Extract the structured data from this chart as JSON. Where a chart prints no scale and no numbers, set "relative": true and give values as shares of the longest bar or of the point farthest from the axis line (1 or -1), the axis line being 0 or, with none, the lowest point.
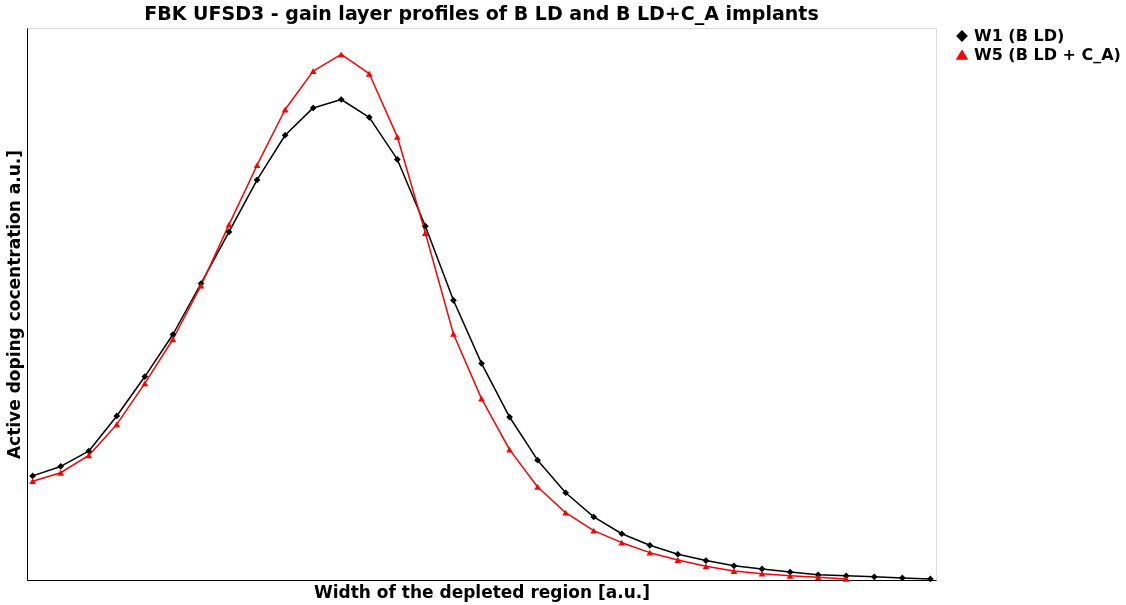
{
  "chart_data": {
    "type": "line",
    "title": "FBK UFSD3 - gain layer profiles of B LD and B LD+C_A implants",
    "xlabel": "Width of the depleted region [a.u.]",
    "ylabel": "Active doping cocentration a.u.]",
    "relative": true,
    "legend": "right",
    "grid": false,
    "line_style": "solid",
    "categories": [
      null,
      null,
      null,
      null,
      null,
      null,
      null,
      null,
      null,
      null,
      null,
      null,
      null,
      null,
      null,
      null,
      null,
      null,
      null,
      null,
      null,
      null,
      null,
      null,
      null,
      null,
      null,
      null,
      null,
      null,
      null,
      null,
      null
    ],
    "series": [
      {
        "name": "W1 (B LD)",
        "color": "#000000",
        "marker": "diamond",
        "values": [
          0.198,
          0.216,
          0.245,
          0.312,
          0.387,
          0.467,
          0.564,
          0.662,
          0.761,
          0.846,
          0.898,
          0.914,
          0.88,
          0.8,
          0.673,
          0.532,
          0.412,
          0.31,
          0.228,
          0.166,
          0.12,
          0.088,
          0.066,
          0.049,
          0.037,
          0.027,
          0.021,
          0.015,
          0.01,
          0.008,
          0.006,
          0.004,
          0.002
        ]
      },
      {
        "name": "W5 (B LD + C_A)",
        "color": "#ff0000",
        "marker": "triangle",
        "values": [
          0.188,
          0.204,
          0.237,
          0.296,
          0.374,
          0.458,
          0.56,
          0.676,
          0.789,
          0.895,
          0.968,
          1.0,
          0.963,
          0.843,
          0.66,
          0.468,
          0.345,
          0.248,
          0.177,
          0.128,
          0.094,
          0.071,
          0.052,
          0.038,
          0.026,
          0.017,
          0.012,
          0.008,
          0.005,
          0.002,
          null,
          null,
          null
        ]
      }
    ]
  }
}
